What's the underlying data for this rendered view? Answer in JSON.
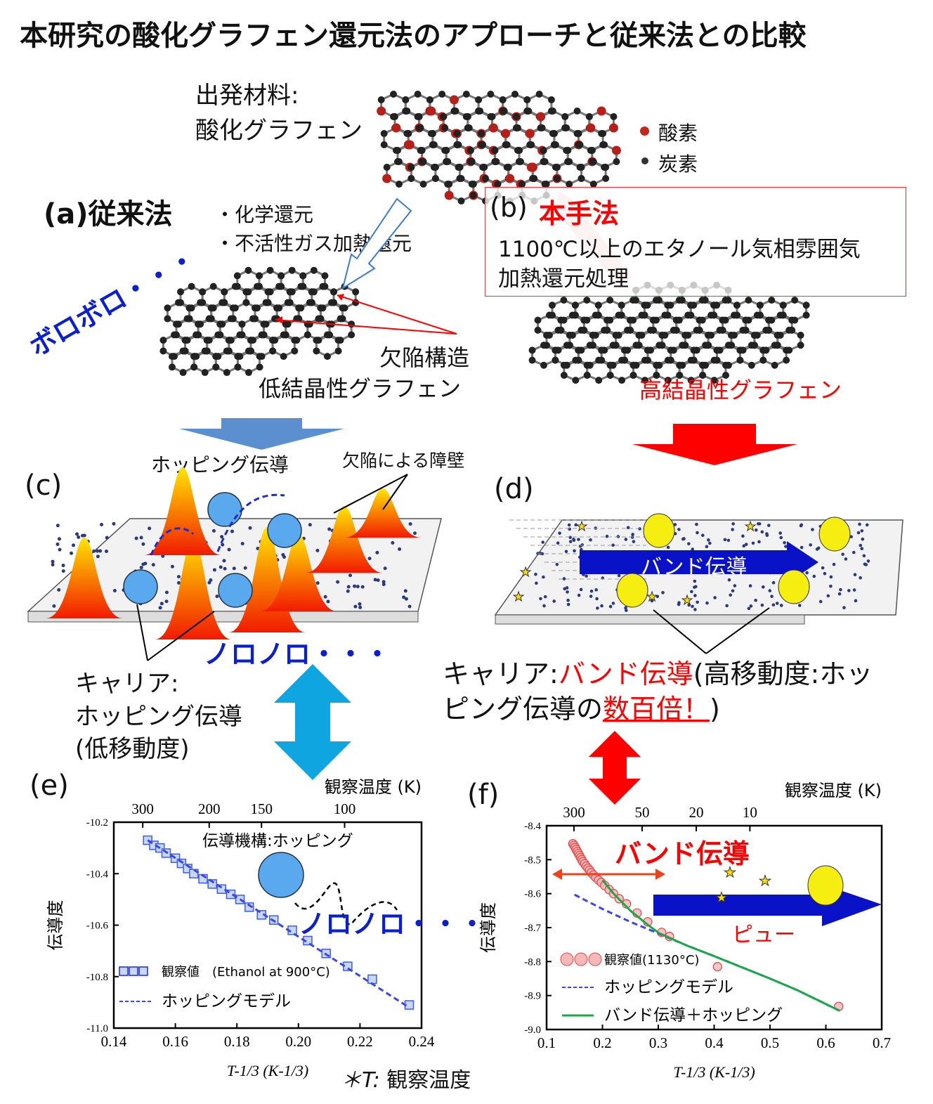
{
  "title": "本研究の酸化グラフェン還元法のアプローチと従来法との比較",
  "starting_material": {
    "label": "出発材料:",
    "name": "酸化グラフェン"
  },
  "atom_legend": [
    {
      "label": "酸素",
      "color": "#c0281c"
    },
    {
      "label": "炭素",
      "color": "#333333"
    }
  ],
  "conventional": {
    "label": "(a)従来法",
    "methods": [
      "・化学還元",
      "・不活性ガス加熱還元"
    ],
    "onomatopoeia": "ボロボロ・・・",
    "defect_label": "欠陥構造",
    "product": "低結晶性グラフェン"
  },
  "proposed": {
    "tag": "(b)",
    "label": "本手法",
    "desc1": "1100℃以上のエタノール気相雰囲気",
    "desc2": "加熱還元処理",
    "product": "高結晶性グラフェン"
  },
  "panel_c": {
    "tag": "(c)",
    "hopping_label": "ホッピング伝導",
    "barrier_label": "欠陥による障壁",
    "onomatopoeia": "ノロノロ・・・",
    "carrier": [
      "キャリア:",
      "ホッピング伝導",
      "(低移動度)"
    ]
  },
  "panel_d": {
    "tag": "(d)",
    "arrow_label": "バンド伝導",
    "caption": {
      "p1": "キャリア:",
      "p2": "バンド伝導",
      "p3": "(高移動度:ホッ",
      "p4": "ピング伝導の",
      "p5": "数百倍！",
      "p6": ")"
    }
  },
  "colors": {
    "accent_red": "#ff0000",
    "accent_blue": "#0a1fd0",
    "arrow_cyan": "#0ea5e0",
    "arrow_steel": "#5b8fd0"
  },
  "chart_data": [
    {
      "id": "e",
      "type": "scatter",
      "tag": "(e)",
      "xlabel": "T-1/3 (K-1/3)",
      "ylabel": "伝導度",
      "top_axis_label": "観察温度 (K)",
      "xlim": [
        0.14,
        0.24
      ],
      "ylim": [
        -11.0,
        -10.2
      ],
      "xticks": [
        "0.14",
        "0.16",
        "0.18",
        "0.20",
        "0.22",
        "0.24"
      ],
      "yticks": [
        "-10.2",
        "-10.4",
        "-10.6",
        "-10.8",
        "-11.0"
      ],
      "top_ticks": [
        {
          "label": "300",
          "x": 0.1494
        },
        {
          "label": "200",
          "x": 0.171
        },
        {
          "label": "150",
          "x": 0.188
        },
        {
          "label": "100",
          "x": 0.215
        }
      ],
      "annotation": "伝導機構:ホッピング",
      "annotation2": "ノロノロ・・・",
      "series": [
        {
          "name": "観察値　(Ethanol at 900°C)",
          "kind": "square",
          "color": "#3a5ee8",
          "x": [
            0.151,
            0.153,
            0.155,
            0.157,
            0.16,
            0.162,
            0.164,
            0.166,
            0.169,
            0.172,
            0.175,
            0.178,
            0.181,
            0.184,
            0.188,
            0.192,
            0.198,
            0.203,
            0.209,
            0.216,
            0.224,
            0.236
          ],
          "y": [
            -10.27,
            -10.29,
            -10.3,
            -10.32,
            -10.34,
            -10.36,
            -10.38,
            -10.4,
            -10.42,
            -10.44,
            -10.46,
            -10.48,
            -10.5,
            -10.53,
            -10.56,
            -10.58,
            -10.62,
            -10.66,
            -10.71,
            -10.76,
            -10.81,
            -10.91
          ]
        },
        {
          "name": "ホッピングモデル",
          "kind": "dashed",
          "color": "#3a44f0",
          "x": [
            0.151,
            0.236
          ],
          "y": [
            -10.27,
            -10.92
          ]
        }
      ]
    },
    {
      "id": "f",
      "type": "scatter",
      "tag": "(f)",
      "xlabel": "T-1/3 (K-1/3)",
      "ylabel": "伝導度",
      "top_axis_label": "観察温度 (K)",
      "xlim": [
        0.1,
        0.7
      ],
      "ylim": [
        -9.0,
        -8.4
      ],
      "xticks": [
        "0.1",
        "0.2",
        "0.3",
        "0.4",
        "0.5",
        "0.6",
        "0.7"
      ],
      "yticks": [
        "-8.4",
        "-8.5",
        "-8.6",
        "-8.7",
        "-8.8",
        "-8.9",
        "-9.0"
      ],
      "top_ticks": [
        {
          "label": "300",
          "x": 0.149
        },
        {
          "label": "50",
          "x": 0.271
        },
        {
          "label": "20",
          "x": 0.368
        },
        {
          "label": "10",
          "x": 0.464
        }
      ],
      "annotation": "バンド伝導",
      "annotation2": "ピュー",
      "series": [
        {
          "name": "観察値(1130°C)",
          "kind": "circle",
          "color": "#e84a4a",
          "x": [
            0.147,
            0.149,
            0.151,
            0.153,
            0.155,
            0.157,
            0.159,
            0.161,
            0.163,
            0.165,
            0.168,
            0.171,
            0.174,
            0.177,
            0.18,
            0.184,
            0.188,
            0.193,
            0.198,
            0.204,
            0.212,
            0.22,
            0.23,
            0.243,
            0.262,
            0.281,
            0.306,
            0.32,
            0.406,
            0.623
          ],
          "y": [
            -8.453,
            -8.458,
            -8.464,
            -8.47,
            -8.476,
            -8.482,
            -8.488,
            -8.494,
            -8.5,
            -8.506,
            -8.512,
            -8.519,
            -8.525,
            -8.531,
            -8.538,
            -8.545,
            -8.552,
            -8.56,
            -8.567,
            -8.576,
            -8.588,
            -8.6,
            -8.615,
            -8.63,
            -8.657,
            -8.683,
            -8.714,
            -8.726,
            -8.815,
            -8.932
          ]
        },
        {
          "name": "ホッピングモデル",
          "kind": "dashed",
          "color": "#3a44f0",
          "x": [
            0.15,
            0.2,
            0.25,
            0.3,
            0.35,
            0.4,
            0.45,
            0.5,
            0.55,
            0.6,
            0.625
          ],
          "y": [
            -8.603,
            -8.645,
            -8.683,
            -8.717,
            -8.752,
            -8.784,
            -8.817,
            -8.85,
            -8.885,
            -8.925,
            -8.945
          ]
        },
        {
          "name": "バンド伝導＋ホッピング",
          "kind": "line",
          "color": "#1aa84a",
          "x": [
            0.2,
            0.22,
            0.25,
            0.28,
            0.3,
            0.35,
            0.4,
            0.45,
            0.5,
            0.55,
            0.6,
            0.625
          ],
          "y": [
            -8.56,
            -8.6,
            -8.65,
            -8.69,
            -8.715,
            -8.752,
            -8.784,
            -8.817,
            -8.85,
            -8.885,
            -8.925,
            -8.945
          ]
        }
      ]
    }
  ],
  "footnote": {
    "symbol": "＊T:",
    "text": "観察温度"
  }
}
